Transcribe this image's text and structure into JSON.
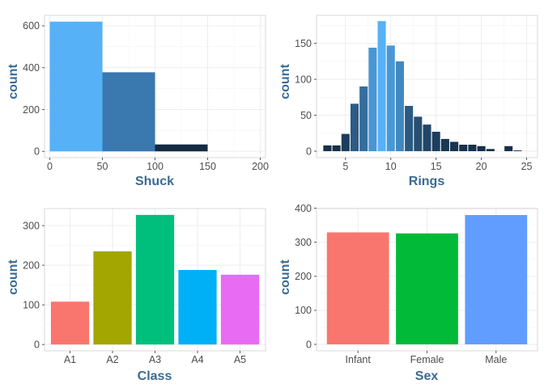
{
  "chart_data": [
    {
      "type": "bar",
      "subtype": "histogram",
      "xlabel": "Shuck",
      "ylabel": "count",
      "bins": [
        [
          0,
          50
        ],
        [
          50,
          100
        ],
        [
          100,
          150
        ],
        [
          150,
          200
        ]
      ],
      "values": [
        620,
        378,
        33,
        0
      ],
      "colors": [
        "#56b1f7",
        "#3a78b0",
        "#132b43",
        "#132b43"
      ],
      "xlim": [
        -5,
        205
      ],
      "ylim": [
        -30,
        650
      ],
      "xticks": [
        0,
        50,
        100,
        150,
        200
      ],
      "yticks": [
        0,
        200,
        400,
        600
      ],
      "grid": true
    },
    {
      "type": "bar",
      "subtype": "histogram",
      "xlabel": "Rings",
      "ylabel": "count",
      "x": [
        3,
        4,
        5,
        6,
        7,
        8,
        9,
        10,
        11,
        12,
        13,
        14,
        15,
        16,
        17,
        18,
        19,
        20,
        21,
        23,
        24
      ],
      "values": [
        8,
        8,
        24,
        66,
        90,
        144,
        181,
        147,
        125,
        63,
        48,
        37,
        27,
        17,
        13,
        9,
        9,
        7,
        3,
        7,
        1
      ],
      "color_scale": {
        "low": "#132b43",
        "high": "#56b1f7"
      },
      "xlim": [
        1.8,
        26.2
      ],
      "ylim": [
        -9,
        189
      ],
      "xticks": [
        5,
        10,
        15,
        20,
        25
      ],
      "yticks": [
        0,
        50,
        100,
        150
      ],
      "grid": true
    },
    {
      "type": "bar",
      "xlabel": "Class",
      "ylabel": "count",
      "categories": [
        "A1",
        "A2",
        "A3",
        "A4",
        "A5"
      ],
      "values": [
        108,
        235,
        327,
        188,
        176
      ],
      "colors": [
        "#f8766d",
        "#a3a500",
        "#00bf7d",
        "#00b0f6",
        "#e76bf3"
      ],
      "ylim": [
        -16,
        343
      ],
      "yticks": [
        0,
        100,
        200,
        300
      ],
      "grid": true
    },
    {
      "type": "bar",
      "xlabel": "Sex",
      "ylabel": "count",
      "categories": [
        "Infant",
        "Female",
        "Male"
      ],
      "values": [
        329,
        326,
        380
      ],
      "colors": [
        "#f8766d",
        "#00ba38",
        "#619cff"
      ],
      "ylim": [
        -19,
        399
      ],
      "yticks": [
        0,
        100,
        200,
        300,
        400
      ],
      "grid": true
    }
  ]
}
